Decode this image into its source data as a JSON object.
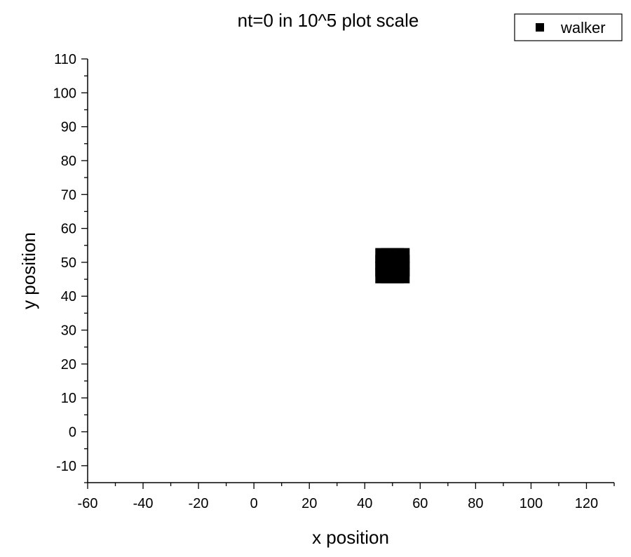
{
  "chart_data": {
    "type": "scatter",
    "title": "nt=0 in 10^5 plot scale",
    "xlabel": "x position",
    "ylabel": "y position",
    "xlim": [
      -60,
      130
    ],
    "ylim": [
      -15,
      110
    ],
    "x_major_ticks": [
      -60,
      -40,
      -20,
      0,
      20,
      40,
      60,
      80,
      100,
      120
    ],
    "x_tick_labels": [
      "-60",
      "-40",
      "-20",
      "0",
      "20",
      "40",
      "60",
      "80",
      "100",
      "120"
    ],
    "y_major_ticks": [
      -10,
      0,
      10,
      20,
      30,
      40,
      50,
      60,
      70,
      80,
      90,
      100,
      110
    ],
    "y_tick_labels": [
      "-10",
      "0",
      "10",
      "20",
      "30",
      "40",
      "50",
      "60",
      "70",
      "80",
      "90",
      "100",
      "110"
    ],
    "grid": false,
    "legend": "top-right",
    "marker_color": "#000000",
    "series": [
      {
        "name": "walker",
        "marker": "square",
        "points": [
          {
            "x": 46,
            "y": 52
          },
          {
            "x": 48,
            "y": 52
          },
          {
            "x": 50,
            "y": 52
          },
          {
            "x": 52,
            "y": 52
          },
          {
            "x": 46,
            "y": 50
          },
          {
            "x": 48,
            "y": 50
          },
          {
            "x": 50,
            "y": 50
          },
          {
            "x": 52,
            "y": 50
          },
          {
            "x": 54,
            "y": 50
          },
          {
            "x": 46,
            "y": 48
          },
          {
            "x": 48,
            "y": 48
          },
          {
            "x": 50,
            "y": 48
          },
          {
            "x": 52,
            "y": 48
          },
          {
            "x": 54,
            "y": 48
          },
          {
            "x": 46,
            "y": 46
          },
          {
            "x": 48,
            "y": 46
          },
          {
            "x": 50,
            "y": 46
          },
          {
            "x": 52,
            "y": 46
          },
          {
            "x": 54,
            "y": 46
          },
          {
            "x": 54,
            "y": 52
          }
        ]
      }
    ]
  }
}
